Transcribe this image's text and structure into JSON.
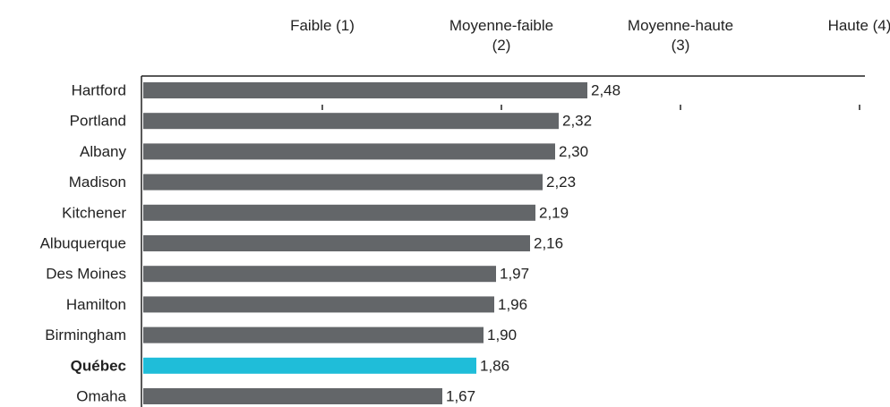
{
  "chart_data": {
    "type": "hbar",
    "categories": [
      "Hartford",
      "Portland",
      "Albany",
      "Madison",
      "Kitchener",
      "Albuquerque",
      "Des Moines",
      "Hamilton",
      "Birmingham",
      "Québec",
      "Omaha"
    ],
    "values": [
      2.48,
      2.32,
      2.3,
      2.23,
      2.19,
      2.16,
      1.97,
      1.96,
      1.9,
      1.86,
      1.67
    ],
    "value_labels": [
      "2,48",
      "2,32",
      "2,30",
      "2,23",
      "2,19",
      "2,16",
      "1,97",
      "1,96",
      "1,90",
      "1,86",
      "1,67"
    ],
    "color": "#636669",
    "highlight_color": "#1fbdd9",
    "highlight_index": 9,
    "xlim": [
      0,
      4
    ],
    "xticks": [
      {
        "value": 1,
        "label": "Faible (1)"
      },
      {
        "value": 2,
        "label": "Moyenne-faible (2)"
      },
      {
        "value": 3,
        "label": "Moyenne-haute (3)"
      },
      {
        "value": 4,
        "label": "Haute (4)"
      }
    ]
  }
}
